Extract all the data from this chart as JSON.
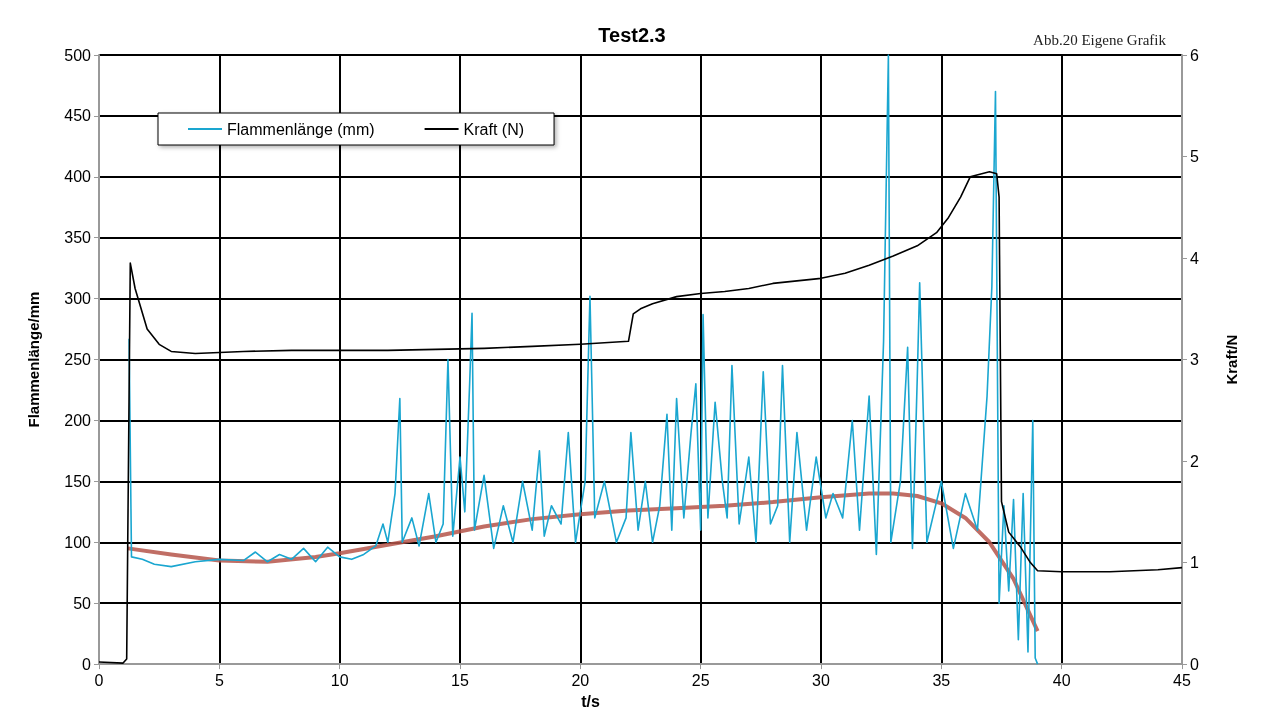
{
  "chart_data": {
    "type": "line",
    "title": "Test2.3",
    "xlabel": "t/s",
    "ylabel": "Flammenlänge/mm",
    "y2label": "Kraft/N",
    "annotations": [
      "Abb.20 Eigene Grafik"
    ],
    "xlim": [
      0,
      45
    ],
    "xticks": [
      0,
      5,
      10,
      15,
      20,
      25,
      30,
      35,
      40,
      45
    ],
    "ylim": [
      0,
      500
    ],
    "yticks": [
      0,
      50,
      100,
      150,
      200,
      250,
      300,
      350,
      400,
      450,
      500
    ],
    "y2lim": [
      0,
      6
    ],
    "y2ticks": [
      0,
      1,
      2,
      3,
      4,
      5,
      6
    ],
    "grid": true,
    "legend": "top left",
    "marker": "none",
    "line_style": "solid",
    "series": [
      {
        "name": "Flammenlänge (mm)",
        "color": "#1aa6d0",
        "x": [
          1.25,
          1.35,
          1.8,
          2.3,
          3,
          4,
          5,
          6,
          6.5,
          7,
          7.5,
          8,
          8.5,
          9,
          9.5,
          10,
          10.5,
          11,
          11.5,
          11.8,
          12,
          12.3,
          12.5,
          12.6,
          13,
          13.3,
          13.7,
          14,
          14.3,
          14.5,
          14.7,
          15,
          15.2,
          15.4,
          15.5,
          15.6,
          16,
          16.4,
          16.8,
          17.2,
          17.6,
          18,
          18.3,
          18.5,
          18.8,
          19.2,
          19.5,
          19.8,
          20.2,
          20.4,
          20.6,
          21,
          21.5,
          21.9,
          22.1,
          22.4,
          22.7,
          23,
          23.3,
          23.6,
          23.8,
          24,
          24.3,
          24.6,
          24.8,
          25,
          25.1,
          25.3,
          25.6,
          25.9,
          26.1,
          26.3,
          26.6,
          27,
          27.3,
          27.6,
          27.9,
          28.2,
          28.4,
          28.7,
          29,
          29.4,
          29.8,
          30.2,
          30.5,
          30.9,
          31.3,
          31.6,
          32,
          32.3,
          32.6,
          32.8,
          32.9,
          33.3,
          33.6,
          33.8,
          34,
          34.1,
          34.4,
          35,
          35.5,
          36,
          36.5,
          36.9,
          37.1,
          37.25,
          37.4,
          37.6,
          37.8,
          38,
          38.2,
          38.4,
          38.6,
          38.8,
          38.9,
          39
        ],
        "values": [
          267,
          88,
          86,
          82,
          80,
          84,
          86,
          85,
          92,
          84,
          90,
          86,
          95,
          84,
          96,
          88,
          86,
          90,
          97,
          115,
          100,
          140,
          218,
          100,
          120,
          97,
          140,
          100,
          115,
          250,
          105,
          170,
          125,
          230,
          288,
          110,
          155,
          95,
          130,
          100,
          150,
          110,
          175,
          105,
          130,
          115,
          190,
          100,
          150,
          302,
          120,
          150,
          100,
          120,
          190,
          110,
          150,
          100,
          130,
          205,
          110,
          218,
          120,
          190,
          230,
          110,
          287,
          120,
          215,
          150,
          120,
          245,
          115,
          170,
          100,
          240,
          115,
          130,
          245,
          100,
          190,
          110,
          170,
          120,
          140,
          120,
          200,
          110,
          220,
          90,
          265,
          500,
          100,
          150,
          260,
          95,
          235,
          313,
          100,
          150,
          95,
          140,
          110,
          220,
          310,
          470,
          50,
          130,
          60,
          135,
          20,
          140,
          10,
          200,
          5,
          0
        ]
      },
      {
        "name": "Kraft (N)",
        "color": "#000000",
        "axis": "y2",
        "x": [
          0,
          1,
          1.15,
          1.3,
          1.5,
          2,
          2.5,
          3,
          4,
          5,
          6,
          8,
          10,
          12,
          14,
          16,
          18,
          20,
          22,
          22.2,
          22.5,
          23,
          24,
          25,
          26,
          27,
          28,
          30,
          31,
          32,
          33,
          34,
          34.8,
          35.3,
          35.8,
          36.2,
          37,
          37.3,
          37.4,
          37.5,
          37.8,
          38.3,
          38.7,
          39,
          40,
          42,
          44,
          45
        ],
        "values": [
          0.02,
          0.01,
          0.05,
          3.95,
          3.7,
          3.3,
          3.15,
          3.08,
          3.06,
          3.07,
          3.08,
          3.09,
          3.09,
          3.09,
          3.1,
          3.11,
          3.13,
          3.15,
          3.18,
          3.45,
          3.5,
          3.55,
          3.62,
          3.65,
          3.67,
          3.7,
          3.75,
          3.8,
          3.85,
          3.93,
          4.02,
          4.12,
          4.25,
          4.4,
          4.6,
          4.8,
          4.85,
          4.83,
          4.6,
          1.6,
          1.3,
          1.15,
          1,
          0.92,
          0.91,
          0.91,
          0.93,
          0.95
        ]
      },
      {
        "type": "line",
        "color": "#b5554a",
        "x": [
          1.2,
          3,
          5,
          7,
          9,
          10,
          12,
          14,
          16,
          18,
          20,
          22,
          24,
          26,
          28,
          30,
          32,
          33,
          34,
          35,
          36,
          37,
          38,
          39
        ],
        "values": [
          95,
          90,
          85,
          84,
          88,
          91,
          98,
          105,
          113,
          119,
          123,
          126,
          128,
          130,
          133,
          137,
          140,
          140,
          138,
          132,
          120,
          100,
          70,
          27
        ]
      }
    ]
  }
}
